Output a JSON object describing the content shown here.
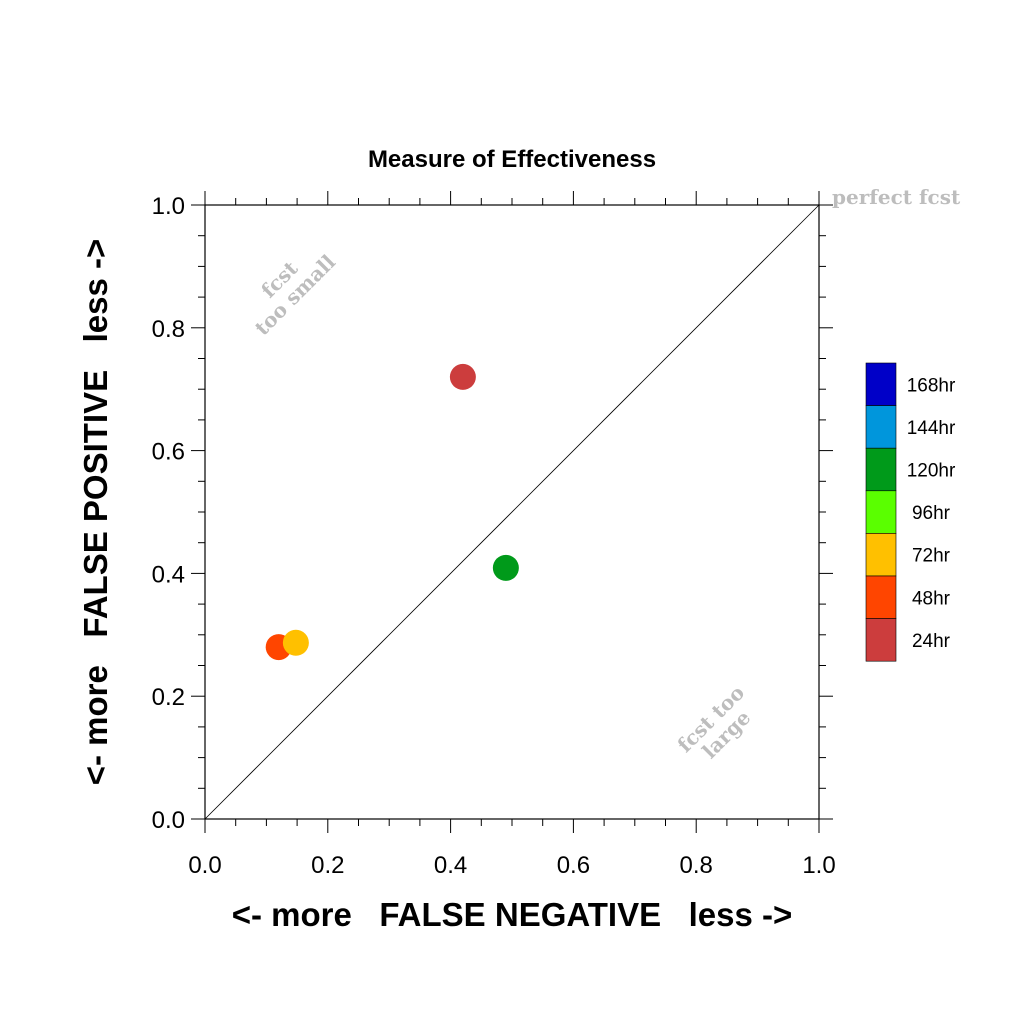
{
  "chart_data": {
    "type": "scatter",
    "title": "Measure of Effectiveness",
    "xlabel": "<- more   FALSE NEGATIVE   less ->",
    "ylabel": "<- more   FALSE POSITIVE   less ->",
    "xlim": [
      0.0,
      1.0
    ],
    "ylim": [
      0.0,
      1.0
    ],
    "x_ticks": [
      "0.0",
      "0.2",
      "0.4",
      "0.6",
      "0.8",
      "1.0"
    ],
    "y_ticks": [
      "0.0",
      "0.2",
      "0.4",
      "0.6",
      "0.8",
      "1.0"
    ],
    "grid": false,
    "reference_line": {
      "from": [
        0,
        0
      ],
      "to": [
        1,
        1
      ]
    },
    "series": [
      {
        "name": "24hr",
        "x": [
          0.42
        ],
        "y": [
          0.72
        ],
        "color": "#cc3d3d"
      },
      {
        "name": "48hr",
        "x": [
          0.12
        ],
        "y": [
          0.28
        ],
        "color": "#ff4500"
      },
      {
        "name": "72hr",
        "x": [
          0.148
        ],
        "y": [
          0.287
        ],
        "color": "#ffc000"
      },
      {
        "name": "120hr",
        "x": [
          0.49
        ],
        "y": [
          0.409
        ],
        "color": "#009a1a"
      }
    ],
    "legend": {
      "placement": "right",
      "entries": [
        {
          "label": "168hr",
          "color": "#0000c8"
        },
        {
          "label": "144hr",
          "color": "#0096dc"
        },
        {
          "label": "120hr",
          "color": "#009a1a"
        },
        {
          "label": "96hr",
          "color": "#5aff00"
        },
        {
          "label": "72hr",
          "color": "#ffc000"
        },
        {
          "label": "48hr",
          "color": "#ff4500"
        },
        {
          "label": "24hr",
          "color": "#cc3d3d"
        }
      ]
    },
    "annotations": {
      "perfect": "perfect fcst",
      "small_line1": "fcst",
      "small_line2": "too small",
      "large_line1": "fcst too",
      "large_line2": "large"
    }
  }
}
